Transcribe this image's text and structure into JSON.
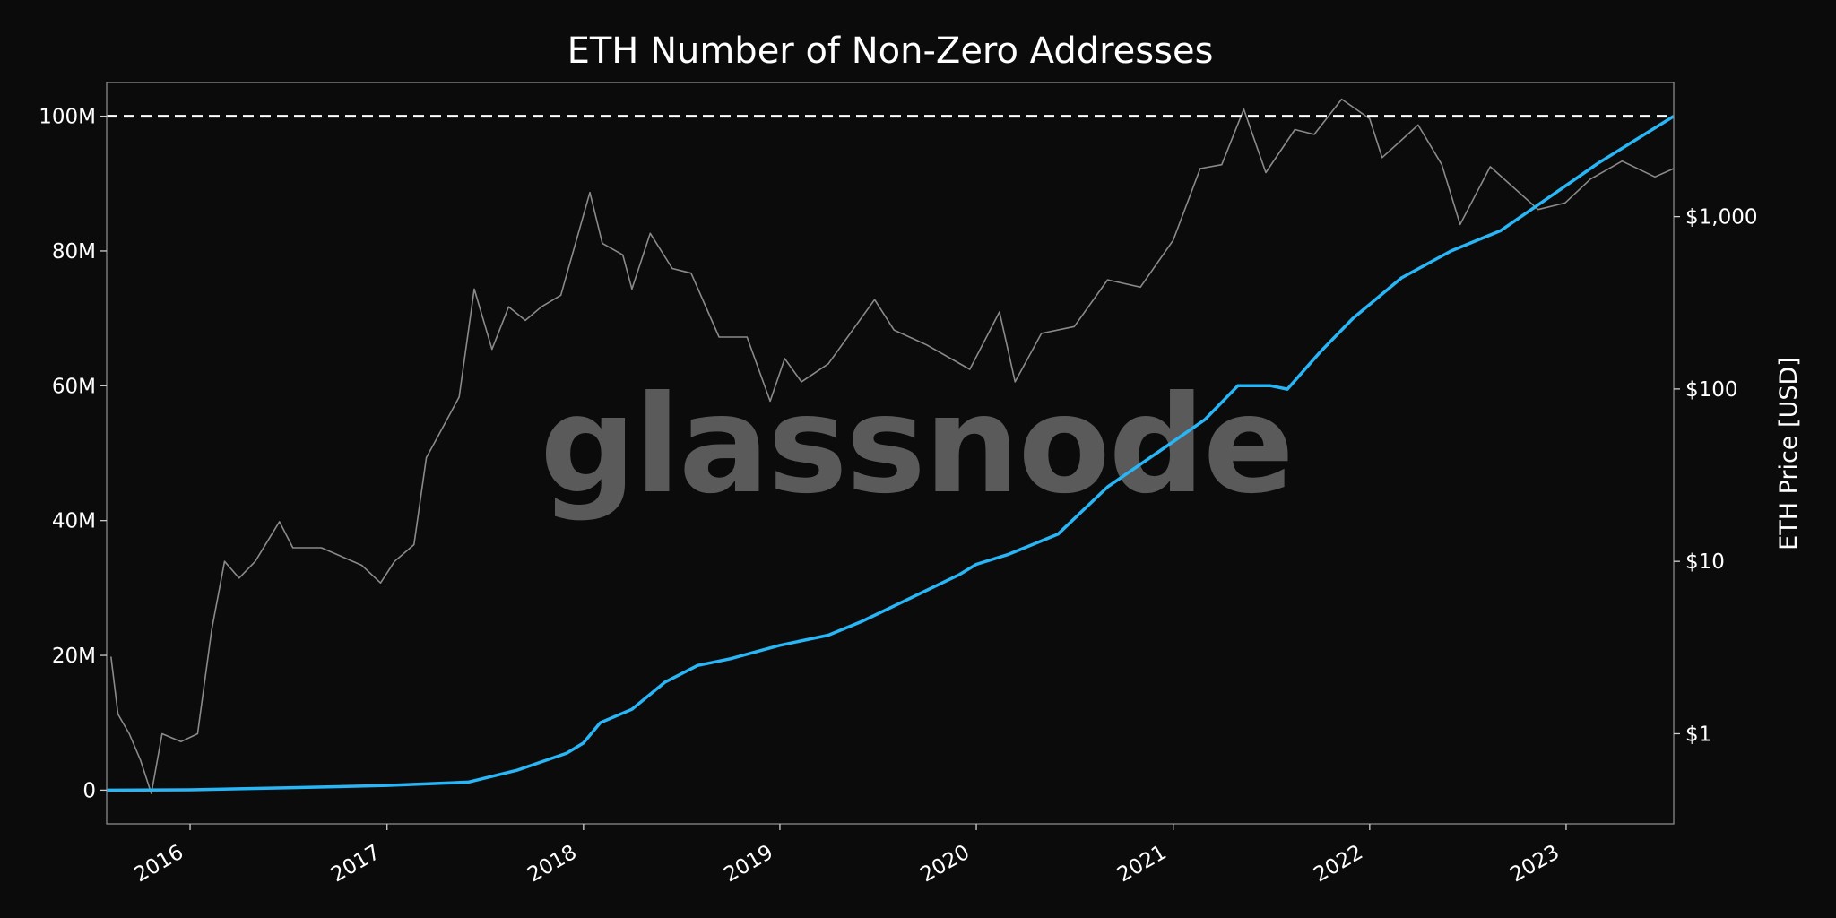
{
  "chart_data": {
    "type": "line",
    "title": "ETH Number of Non-Zero Addresses",
    "watermark": "glassnode",
    "xlabel": "",
    "ylabel_left": "",
    "ylabel_right": "ETH Price [USD]",
    "x_ticks": [
      "2016",
      "2017",
      "2018",
      "2019",
      "2020",
      "2021",
      "2022",
      "2023"
    ],
    "y_left_ticks": [
      {
        "value": 0,
        "label": "0"
      },
      {
        "value": 20000000,
        "label": "20M"
      },
      {
        "value": 40000000,
        "label": "40M"
      },
      {
        "value": 60000000,
        "label": "60M"
      },
      {
        "value": 80000000,
        "label": "80M"
      },
      {
        "value": 100000000,
        "label": "100M"
      }
    ],
    "y_right_ticks": [
      {
        "value": 1,
        "label": "$1"
      },
      {
        "value": 10,
        "label": "$10"
      },
      {
        "value": 100,
        "label": "$100"
      },
      {
        "value": 1000,
        "label": "$1,000"
      }
    ],
    "y_left_range": [
      -5000000,
      105000000
    ],
    "y_right_scale": "log",
    "y_right_range": [
      0.3,
      6000
    ],
    "x_range": [
      "2015-07-30",
      "2023-07-20"
    ],
    "reference_line": {
      "value": 100000000,
      "style": "dashed",
      "color": "#ffffff"
    },
    "grid": false,
    "series": [
      {
        "axis": "left",
        "color": "#29b6f6",
        "points": [
          [
            "2015-07-30",
            0
          ],
          [
            "2016-01-01",
            50000
          ],
          [
            "2016-07-01",
            350000
          ],
          [
            "2017-01-01",
            700000
          ],
          [
            "2017-06-01",
            1200000
          ],
          [
            "2017-09-01",
            3000000
          ],
          [
            "2017-12-01",
            5500000
          ],
          [
            "2018-01-01",
            7000000
          ],
          [
            "2018-02-01",
            10000000
          ],
          [
            "2018-04-01",
            12000000
          ],
          [
            "2018-06-01",
            16000000
          ],
          [
            "2018-08-01",
            18500000
          ],
          [
            "2018-10-01",
            19500000
          ],
          [
            "2019-01-01",
            21500000
          ],
          [
            "2019-04-01",
            23000000
          ],
          [
            "2019-06-01",
            25000000
          ],
          [
            "2019-09-01",
            28500000
          ],
          [
            "2019-12-01",
            32000000
          ],
          [
            "2020-01-01",
            33500000
          ],
          [
            "2020-03-01",
            35000000
          ],
          [
            "2020-06-01",
            38000000
          ],
          [
            "2020-09-01",
            45000000
          ],
          [
            "2020-12-01",
            50000000
          ],
          [
            "2021-03-01",
            55000000
          ],
          [
            "2021-05-01",
            60000000
          ],
          [
            "2021-07-01",
            60000000
          ],
          [
            "2021-08-01",
            59500000
          ],
          [
            "2021-10-01",
            65000000
          ],
          [
            "2021-12-01",
            70000000
          ],
          [
            "2022-03-01",
            76000000
          ],
          [
            "2022-06-01",
            80000000
          ],
          [
            "2022-09-01",
            83000000
          ],
          [
            "2022-12-01",
            88000000
          ],
          [
            "2023-03-01",
            93000000
          ],
          [
            "2023-07-20",
            100000000
          ]
        ]
      },
      {
        "axis": "right",
        "color": "#8a8a8a",
        "points": [
          [
            "2015-08-07",
            2.8
          ],
          [
            "2015-08-20",
            1.3
          ],
          [
            "2015-09-10",
            1.0
          ],
          [
            "2015-10-01",
            0.7
          ],
          [
            "2015-10-21",
            0.45
          ],
          [
            "2015-11-10",
            1.0
          ],
          [
            "2015-12-15",
            0.9
          ],
          [
            "2016-01-15",
            1.0
          ],
          [
            "2016-02-10",
            4.0
          ],
          [
            "2016-03-05",
            10.0
          ],
          [
            "2016-04-01",
            8.0
          ],
          [
            "2016-05-01",
            10.0
          ],
          [
            "2016-06-15",
            17.0
          ],
          [
            "2016-07-10",
            12.0
          ],
          [
            "2016-09-01",
            12.0
          ],
          [
            "2016-11-15",
            9.5
          ],
          [
            "2016-12-20",
            7.5
          ],
          [
            "2017-01-15",
            10.0
          ],
          [
            "2017-02-20",
            12.5
          ],
          [
            "2017-03-15",
            40.0
          ],
          [
            "2017-04-01",
            50.0
          ],
          [
            "2017-05-15",
            90.0
          ],
          [
            "2017-06-12",
            380.0
          ],
          [
            "2017-07-15",
            170.0
          ],
          [
            "2017-08-15",
            300.0
          ],
          [
            "2017-09-15",
            250.0
          ],
          [
            "2017-10-15",
            300.0
          ],
          [
            "2017-11-20",
            350.0
          ],
          [
            "2017-12-20",
            750.0
          ],
          [
            "2018-01-13",
            1380.0
          ],
          [
            "2018-02-05",
            700.0
          ],
          [
            "2018-03-15",
            600.0
          ],
          [
            "2018-04-01",
            380.0
          ],
          [
            "2018-05-05",
            800.0
          ],
          [
            "2018-06-15",
            500.0
          ],
          [
            "2018-07-20",
            470.0
          ],
          [
            "2018-09-10",
            200.0
          ],
          [
            "2018-11-01",
            200.0
          ],
          [
            "2018-12-14",
            85.0
          ],
          [
            "2019-01-10",
            150.0
          ],
          [
            "2019-02-10",
            110.0
          ],
          [
            "2019-04-01",
            140.0
          ],
          [
            "2019-06-26",
            330.0
          ],
          [
            "2019-08-01",
            220.0
          ],
          [
            "2019-10-01",
            180.0
          ],
          [
            "2019-12-20",
            130.0
          ],
          [
            "2020-02-13",
            280.0
          ],
          [
            "2020-03-13",
            110.0
          ],
          [
            "2020-05-01",
            210.0
          ],
          [
            "2020-07-01",
            230.0
          ],
          [
            "2020-09-01",
            430.0
          ],
          [
            "2020-11-01",
            390.0
          ],
          [
            "2021-01-01",
            730.0
          ],
          [
            "2021-02-20",
            1900.0
          ],
          [
            "2021-04-01",
            2000.0
          ],
          [
            "2021-05-12",
            4200.0
          ],
          [
            "2021-06-22",
            1800.0
          ],
          [
            "2021-08-15",
            3200.0
          ],
          [
            "2021-09-20",
            3000.0
          ],
          [
            "2021-11-10",
            4800.0
          ],
          [
            "2022-01-01",
            3700.0
          ],
          [
            "2022-01-24",
            2200.0
          ],
          [
            "2022-04-01",
            3400.0
          ],
          [
            "2022-05-15",
            2000.0
          ],
          [
            "2022-06-18",
            900.0
          ],
          [
            "2022-08-13",
            1950.0
          ],
          [
            "2022-11-10",
            1100.0
          ],
          [
            "2022-12-30",
            1200.0
          ],
          [
            "2023-02-15",
            1650.0
          ],
          [
            "2023-04-15",
            2100.0
          ],
          [
            "2023-06-15",
            1700.0
          ],
          [
            "2023-07-20",
            1900.0
          ]
        ]
      }
    ]
  }
}
